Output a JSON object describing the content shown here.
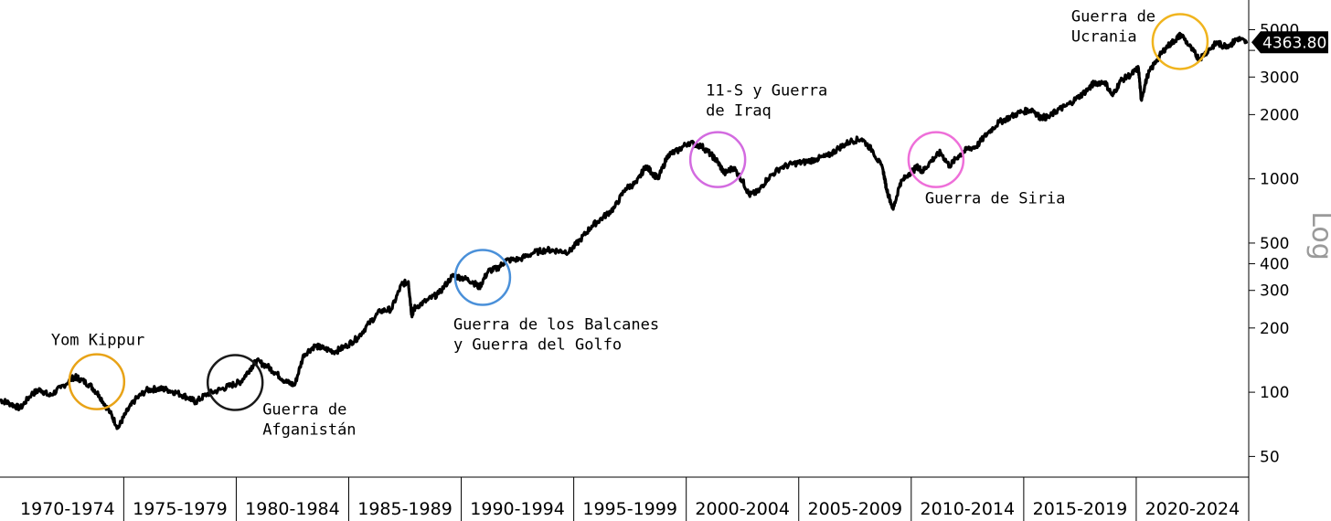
{
  "chart_data": {
    "type": "line",
    "title": "",
    "yscale": "log",
    "ylim": [
      40,
      6000
    ],
    "xlim": [
      1969.5,
      2025.0
    ],
    "y_ticks": [
      50,
      100,
      200,
      300,
      400,
      500,
      1000,
      2000,
      3000,
      4000,
      5000
    ],
    "y_tick_labels": [
      "50",
      "100",
      "200",
      "300",
      "400",
      "500",
      "1000",
      "2000",
      "3000",
      "",
      "5000"
    ],
    "y_axis_note": "Log",
    "last_value_label": "4363.80",
    "line_color": "#000000",
    "periods": [
      {
        "label": "1970-1974",
        "start": 1970,
        "end": 1975
      },
      {
        "label": "1975-1979",
        "start": 1975,
        "end": 1980
      },
      {
        "label": "1980-1984",
        "start": 1980,
        "end": 1985
      },
      {
        "label": "1985-1989",
        "start": 1985,
        "end": 1990
      },
      {
        "label": "1990-1994",
        "start": 1990,
        "end": 1995
      },
      {
        "label": "1995-1999",
        "start": 1995,
        "end": 2000
      },
      {
        "label": "2000-2004",
        "start": 2000,
        "end": 2005
      },
      {
        "label": "2005-2009",
        "start": 2005,
        "end": 2010
      },
      {
        "label": "2010-2014",
        "start": 2010,
        "end": 2015
      },
      {
        "label": "2015-2019",
        "start": 2015,
        "end": 2020
      },
      {
        "label": "2020-2024",
        "start": 2020,
        "end": 2025
      }
    ],
    "series": [
      {
        "x": [
          1969.5,
          1969.9,
          1970.4,
          1970.9,
          1971.3,
          1971.7,
          1972.2,
          1972.8,
          1973.0,
          1973.5,
          1973.9,
          1974.4,
          1974.75,
          1975.1,
          1975.5,
          1976.0,
          1976.5,
          1976.9,
          1977.4,
          1977.9,
          1978.2,
          1978.7,
          1979.3,
          1979.8,
          1980.2,
          1980.6,
          1980.9,
          1981.4,
          1981.8,
          1982.2,
          1982.6,
          1983.0,
          1983.5,
          1983.9,
          1984.4,
          1984.9,
          1985.4,
          1985.9,
          1986.4,
          1986.9,
          1987.35,
          1987.65,
          1987.8,
          1987.95,
          1988.5,
          1989.0,
          1989.6,
          1990.0,
          1990.5,
          1990.8,
          1991.2,
          1991.6,
          1992.0,
          1992.6,
          1993.2,
          1993.8,
          1994.3,
          1994.8,
          1995.3,
          1995.8,
          1996.3,
          1996.8,
          1997.3,
          1997.8,
          1998.2,
          1998.55,
          1998.75,
          1999.2,
          1999.6,
          2000.1,
          2000.7,
          2001.1,
          2001.4,
          2001.7,
          2002.1,
          2002.5,
          2002.8,
          2003.2,
          2003.6,
          2004.2,
          2004.8,
          2005.3,
          2005.8,
          2006.3,
          2006.8,
          2007.3,
          2007.8,
          2008.3,
          2008.75,
          2008.9,
          2009.2,
          2009.5,
          2009.9,
          2010.3,
          2010.5,
          2010.9,
          2011.3,
          2011.7,
          2012.1,
          2012.5,
          2012.9,
          2013.4,
          2013.9,
          2014.4,
          2014.9,
          2015.4,
          2015.7,
          2016.1,
          2016.5,
          2016.9,
          2017.4,
          2017.9,
          2018.1,
          2018.6,
          2018.95,
          2019.3,
          2019.8,
          2020.1,
          2020.22,
          2020.5,
          2020.9,
          2021.3,
          2021.7,
          2022.0,
          2022.5,
          2022.8,
          2023.2,
          2023.6,
          2023.85,
          2024.2,
          2024.5,
          2024.9
        ],
        "y": [
          92,
          89,
          84,
          98,
          103,
          96,
          105,
          118,
          116,
          108,
          97,
          80,
          68,
          80,
          92,
          102,
          104,
          103,
          99,
          94,
          90,
          98,
          103,
          108,
          112,
          128,
          140,
          132,
          122,
          112,
          108,
          150,
          165,
          160,
          155,
          165,
          180,
          210,
          240,
          245,
          320,
          330,
          230,
          250,
          270,
          290,
          350,
          345,
          330,
          310,
          370,
          380,
          415,
          420,
          450,
          465,
          460,
          455,
          520,
          600,
          660,
          730,
          900,
          960,
          1150,
          1050,
          1000,
          1300,
          1350,
          1480,
          1420,
          1300,
          1200,
          1060,
          1130,
          980,
          840,
          870,
          1000,
          1130,
          1180,
          1200,
          1240,
          1280,
          1400,
          1500,
          1540,
          1350,
          1100,
          900,
          720,
          950,
          1060,
          1140,
          1080,
          1220,
          1330,
          1150,
          1280,
          1380,
          1420,
          1640,
          1840,
          1950,
          2060,
          2110,
          1950,
          1940,
          2100,
          2200,
          2400,
          2650,
          2800,
          2850,
          2450,
          2880,
          3100,
          3300,
          2350,
          3050,
          3600,
          4100,
          4450,
          4750,
          4000,
          3650,
          4000,
          4350,
          4200,
          4250,
          4550,
          4363.8
        ]
      }
    ],
    "annotations": [
      {
        "text_lines": [
          "Yom Kippur"
        ],
        "x": 1973.8,
        "y": 112,
        "color": "#E8A317"
      },
      {
        "text_lines": [
          "Guerra de",
          "Afganistán"
        ],
        "x": 1979.95,
        "y": 111,
        "color": "#1a1a1a"
      },
      {
        "text_lines": [
          "Guerra de los Balcanes",
          "y Guerra del Golfo"
        ],
        "x": 1990.95,
        "y": 345,
        "color": "#4A90D9"
      },
      {
        "text_lines": [
          "11-S y Guerra",
          "de Iraq"
        ],
        "x": 2001.4,
        "y": 1230,
        "color": "#D36BE0"
      },
      {
        "text_lines": [
          "Guerra de Siria"
        ],
        "x": 2011.1,
        "y": 1230,
        "color": "#EE6FD9"
      },
      {
        "text_lines": [
          "Guerra de",
          "Ucrania"
        ],
        "x": 2021.95,
        "y": 4400,
        "color": "#F0B41E"
      }
    ]
  }
}
